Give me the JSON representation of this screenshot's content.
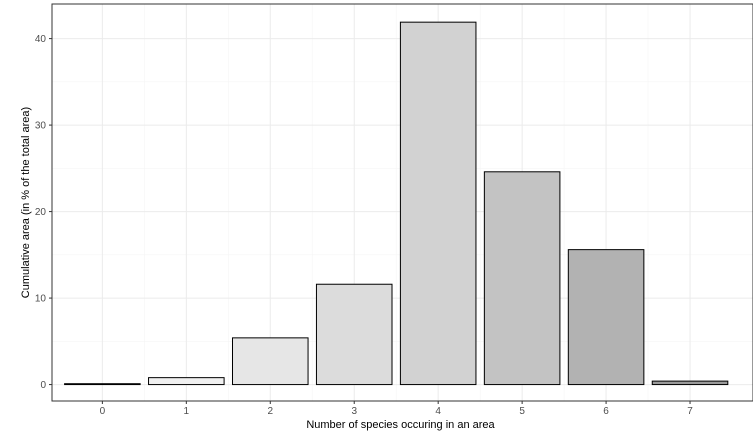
{
  "chart_data": {
    "type": "bar",
    "title": "",
    "xlabel": "Number of species occuring in an area",
    "ylabel": "Cumulative area (in % of the total area)",
    "categories": [
      "0",
      "1",
      "2",
      "3",
      "4",
      "5",
      "6",
      "7"
    ],
    "values": [
      0.1,
      0.8,
      5.4,
      11.6,
      41.9,
      24.6,
      15.6,
      0.4
    ],
    "bar_colors": [
      "#fafafa",
      "#f0f0f0",
      "#e6e6e6",
      "#dcdcdc",
      "#d2d2d2",
      "#c3c3c3",
      "#b2b2b2",
      "#9a9a9a"
    ],
    "y_ticks": [
      0,
      10,
      20,
      30,
      40
    ],
    "ylim": [
      -1.9,
      44
    ],
    "grid": true,
    "legend": "none",
    "colors": {
      "bar_outline": "#000000",
      "grid_major": "#ebebeb",
      "grid_minor": "#f5f5f5",
      "panel_border": "#333333"
    }
  }
}
